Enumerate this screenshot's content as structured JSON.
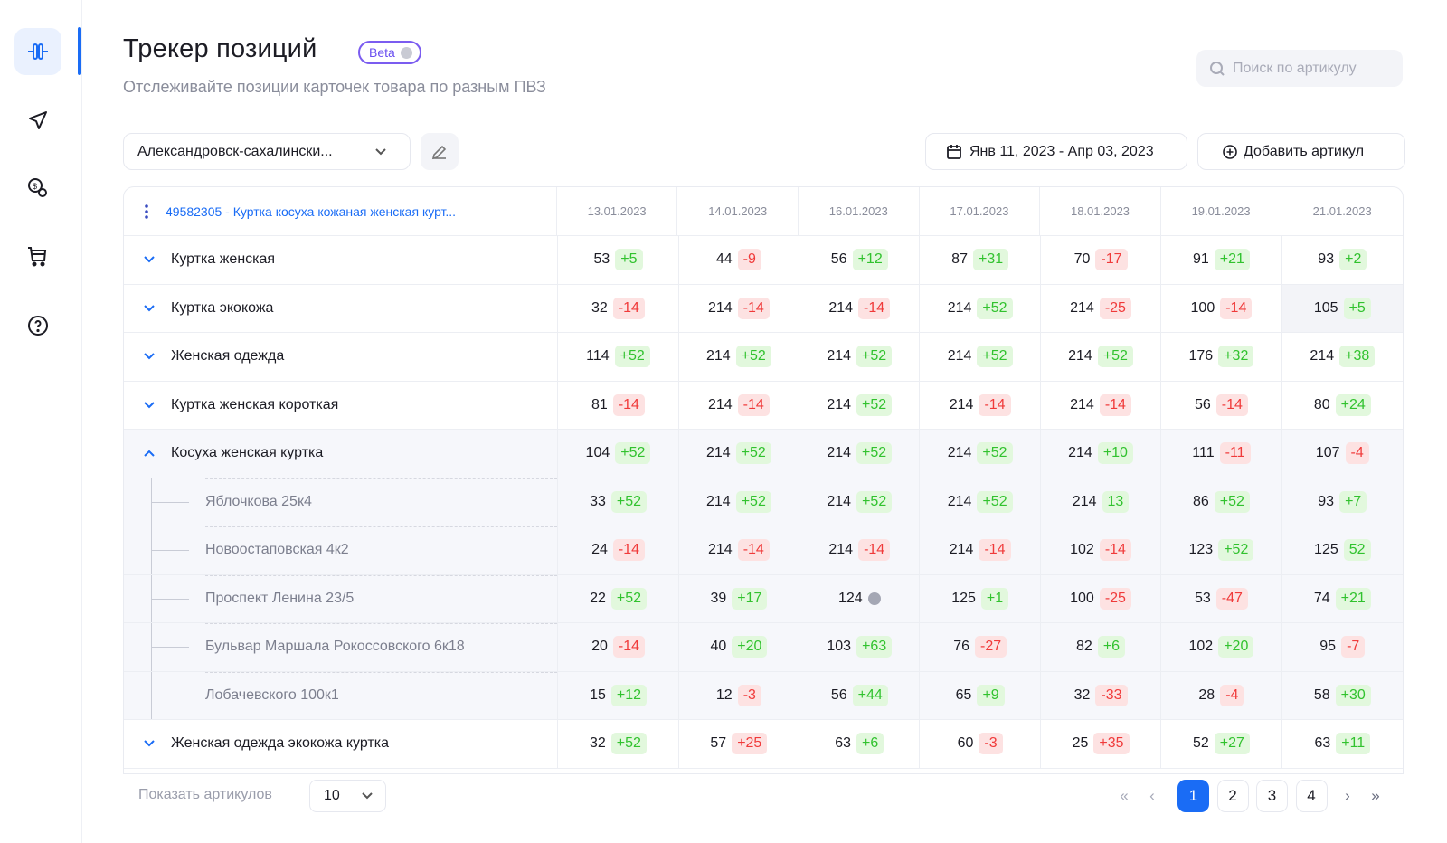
{
  "sidebar": {
    "items": [
      {
        "icon": "tracker-icon",
        "active": true
      },
      {
        "icon": "send-icon"
      },
      {
        "icon": "coins-icon"
      },
      {
        "icon": "cart-icon"
      },
      {
        "icon": "help-icon"
      }
    ]
  },
  "header": {
    "title": "Трекер позиций",
    "badge": "Beta",
    "subtitle": "Отслеживайте позиции карточек товара по разным ПВЗ",
    "search_placeholder": "Поиск по артикулу"
  },
  "toolbar": {
    "location": "Александровск-сахалински...",
    "date_range": "Янв 11, 2023 - Апр 03, 2023",
    "add_label": "Добавить артикул"
  },
  "colors": {
    "accent": "#1a6cf5",
    "positive": "#31c22e",
    "negative": "#f03a3a",
    "beta": "#6a4ff0"
  },
  "table": {
    "product": "49582305 - Куртка косуха кожаная женская курт...",
    "dates": [
      "13.01.2023",
      "14.01.2023",
      "16.01.2023",
      "17.01.2023",
      "18.01.2023",
      "19.01.2023",
      "21.01.2023"
    ],
    "rows": [
      {
        "label": "Куртка женская",
        "type": "collapsed",
        "cells": [
          [
            "53",
            "+5",
            "pos"
          ],
          [
            "44",
            "-9",
            "neg"
          ],
          [
            "56",
            "+12",
            "pos"
          ],
          [
            "87",
            "+31",
            "pos"
          ],
          [
            "70",
            "-17",
            "neg"
          ],
          [
            "91",
            "+21",
            "pos"
          ],
          [
            "93",
            "+2",
            "pos"
          ]
        ]
      },
      {
        "label": "Куртка экокожа",
        "type": "collapsed",
        "cells": [
          [
            "32",
            "-14",
            "neg"
          ],
          [
            "214",
            "-14",
            "neg"
          ],
          [
            "214",
            "-14",
            "neg"
          ],
          [
            "214",
            "+52",
            "pos"
          ],
          [
            "214",
            "-25",
            "neg"
          ],
          [
            "100",
            "-14",
            "neg"
          ],
          [
            "105",
            "+5",
            "pos"
          ]
        ]
      },
      {
        "label": "Женская одежда",
        "type": "collapsed",
        "cells": [
          [
            "114",
            "+52",
            "pos"
          ],
          [
            "214",
            "+52",
            "pos"
          ],
          [
            "214",
            "+52",
            "pos"
          ],
          [
            "214",
            "+52",
            "pos"
          ],
          [
            "214",
            "+52",
            "pos"
          ],
          [
            "176",
            "+32",
            "pos"
          ],
          [
            "214",
            "+38",
            "pos"
          ]
        ]
      },
      {
        "label": "Куртка женская короткая",
        "type": "collapsed",
        "cells": [
          [
            "81",
            "-14",
            "neg"
          ],
          [
            "214",
            "-14",
            "neg"
          ],
          [
            "214",
            "+52",
            "pos"
          ],
          [
            "214",
            "-14",
            "neg"
          ],
          [
            "214",
            "-14",
            "neg"
          ],
          [
            "56",
            "-14",
            "neg"
          ],
          [
            "80",
            "+24",
            "pos"
          ]
        ]
      },
      {
        "label": "Косуха женская куртка",
        "type": "expanded",
        "cells": [
          [
            "104",
            "+52",
            "pos"
          ],
          [
            "214",
            "+52",
            "pos"
          ],
          [
            "214",
            "+52",
            "pos"
          ],
          [
            "214",
            "+52",
            "pos"
          ],
          [
            "214",
            "+10",
            "pos"
          ],
          [
            "111",
            "-11",
            "neg"
          ],
          [
            "107",
            "-4",
            "neg"
          ]
        ]
      },
      {
        "label": "Яблочкова 25к4",
        "type": "child",
        "cells": [
          [
            "33",
            "+52",
            "pos"
          ],
          [
            "214",
            "+52",
            "pos"
          ],
          [
            "214",
            "+52",
            "pos"
          ],
          [
            "214",
            "+52",
            "pos"
          ],
          [
            "214",
            "13",
            "pos"
          ],
          [
            "86",
            "+52",
            "pos"
          ],
          [
            "93",
            "+7",
            "pos"
          ]
        ]
      },
      {
        "label": "Новоостаповская 4к2",
        "type": "child",
        "cells": [
          [
            "24",
            "-14",
            "neg"
          ],
          [
            "214",
            "-14",
            "neg"
          ],
          [
            "214",
            "-14",
            "neg"
          ],
          [
            "214",
            "-14",
            "neg"
          ],
          [
            "102",
            "-14",
            "neg"
          ],
          [
            "123",
            "+52",
            "pos"
          ],
          [
            "125",
            "52",
            "pos"
          ]
        ]
      },
      {
        "label": "Проспект Ленина 23/5",
        "type": "child",
        "cells": [
          [
            "22",
            "+52",
            "pos"
          ],
          [
            "39",
            "+17",
            "pos"
          ],
          [
            "124",
            "",
            "info"
          ],
          [
            "125",
            "+1",
            "pos"
          ],
          [
            "100",
            "-25",
            "neg"
          ],
          [
            "53",
            "-47",
            "neg"
          ],
          [
            "74",
            "+21",
            "pos"
          ]
        ]
      },
      {
        "label": "Бульвар Маршала Рокоссовского 6к18",
        "type": "child",
        "cells": [
          [
            "20",
            "-14",
            "neg"
          ],
          [
            "40",
            "+20",
            "pos"
          ],
          [
            "103",
            "+63",
            "pos"
          ],
          [
            "76",
            "-27",
            "neg"
          ],
          [
            "82",
            "+6",
            "pos"
          ],
          [
            "102",
            "+20",
            "pos"
          ],
          [
            "95",
            "-7",
            "neg"
          ]
        ]
      },
      {
        "label": "Лобачевского 100к1",
        "type": "child",
        "cells": [
          [
            "15",
            "+12",
            "pos"
          ],
          [
            "12",
            "-3",
            "neg"
          ],
          [
            "56",
            "+44",
            "pos"
          ],
          [
            "65",
            "+9",
            "pos"
          ],
          [
            "32",
            "-33",
            "neg"
          ],
          [
            "28",
            "-4",
            "neg"
          ],
          [
            "58",
            "+30",
            "pos"
          ]
        ]
      },
      {
        "label": "Женская одежда экокожа куртка",
        "type": "collapsed",
        "cells": [
          [
            "32",
            "+52",
            "pos"
          ],
          [
            "57",
            "+25",
            "neg"
          ],
          [
            "63",
            "+6",
            "pos"
          ],
          [
            "60",
            "-3",
            "neg"
          ],
          [
            "25",
            "+35",
            "neg"
          ],
          [
            "52",
            "+27",
            "pos"
          ],
          [
            "63",
            "+11",
            "pos"
          ]
        ]
      }
    ]
  },
  "footer": {
    "show_label": "Показать артикулов",
    "per_page": "10",
    "pages": [
      "1",
      "2",
      "3",
      "4"
    ],
    "current_page": "1"
  }
}
